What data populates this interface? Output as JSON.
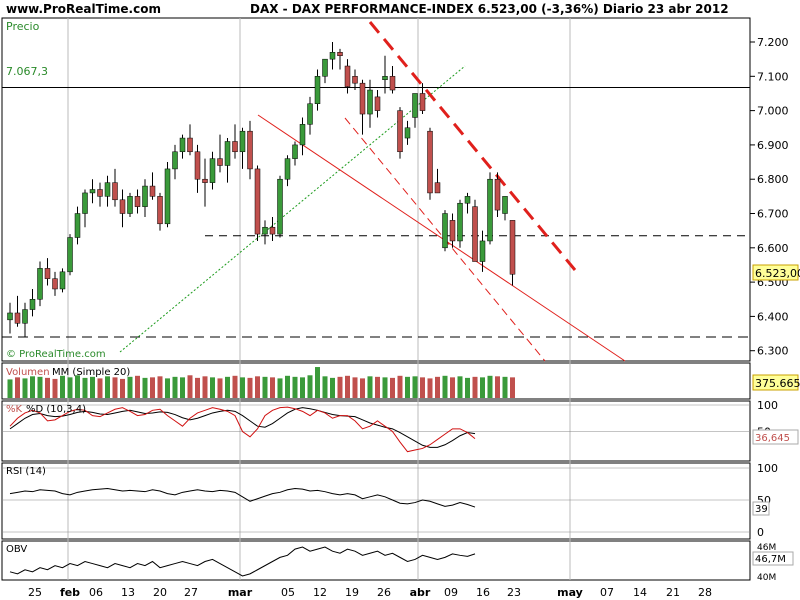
{
  "header": {
    "site": "www.ProRealTime.com",
    "title": "DAX - DAX PERFORMANCE-INDEX    6.523,00 (-3,36%)    Diario  23 abr 2012"
  },
  "panels": {
    "price_label": "Precio",
    "watermark": "© ProRealTime.com",
    "hline_label": "7.067,3",
    "last_price_badge": "6.523,00",
    "volume_label": "Volumen",
    "volume_ma_label": "MM (Simple 20)",
    "volume_badge": "375.665",
    "stoch_label_k": "%K",
    "stoch_label_d": "%D (10,3,4)",
    "stoch_badge": "36,645",
    "rsi_label": "RSI (14)",
    "rsi_badge": "39",
    "obv_label": "OBV",
    "obv_badge": "46,7M"
  },
  "colors": {
    "up": "#3a9a3a",
    "down": "#c0504d",
    "trendline": "#e0201c",
    "support_dotted": "#1a9a1a",
    "badge_bg": "#ffff99",
    "volume_bar": "#c0504d",
    "volume_bar_up": "#3a9a3a"
  },
  "chart_data": [
    {
      "type": "candlestick",
      "title": "DAX - DAX PERFORMANCE-INDEX",
      "ylabel": "Precio",
      "ylim": [
        6270,
        7270
      ],
      "yticks": [
        "6.300",
        "6.400",
        "6.500",
        "6.600",
        "6.700",
        "6.800",
        "6.900",
        "7.000",
        "7.100",
        "7.200"
      ],
      "ytick_values": [
        6300,
        6400,
        6500,
        6600,
        6700,
        6800,
        6900,
        7000,
        7100,
        7200
      ],
      "x_labels": [
        "25",
        "feb",
        "06",
        "13",
        "20",
        "27",
        "mar",
        "05",
        "12",
        "19",
        "26",
        "abr",
        "09",
        "16",
        "23",
        "may",
        "07",
        "14",
        "21",
        "28"
      ],
      "horizontal_levels": [
        7067.3,
        6635,
        6340
      ],
      "candles": [
        {
          "o": 6390,
          "h": 6440,
          "l": 6350,
          "c": 6410
        },
        {
          "o": 6410,
          "h": 6460,
          "l": 6370,
          "c": 6380
        },
        {
          "o": 6380,
          "h": 6440,
          "l": 6340,
          "c": 6420
        },
        {
          "o": 6420,
          "h": 6480,
          "l": 6400,
          "c": 6450
        },
        {
          "o": 6450,
          "h": 6560,
          "l": 6430,
          "c": 6540
        },
        {
          "o": 6540,
          "h": 6570,
          "l": 6490,
          "c": 6510
        },
        {
          "o": 6510,
          "h": 6530,
          "l": 6460,
          "c": 6480
        },
        {
          "o": 6480,
          "h": 6540,
          "l": 6470,
          "c": 6530
        },
        {
          "o": 6530,
          "h": 6640,
          "l": 6520,
          "c": 6630
        },
        {
          "o": 6630,
          "h": 6720,
          "l": 6610,
          "c": 6700
        },
        {
          "o": 6700,
          "h": 6770,
          "l": 6660,
          "c": 6760
        },
        {
          "o": 6760,
          "h": 6800,
          "l": 6730,
          "c": 6770
        },
        {
          "o": 6770,
          "h": 6790,
          "l": 6720,
          "c": 6750
        },
        {
          "o": 6750,
          "h": 6810,
          "l": 6720,
          "c": 6790
        },
        {
          "o": 6790,
          "h": 6830,
          "l": 6720,
          "c": 6740
        },
        {
          "o": 6740,
          "h": 6770,
          "l": 6660,
          "c": 6700
        },
        {
          "o": 6700,
          "h": 6760,
          "l": 6690,
          "c": 6750
        },
        {
          "o": 6750,
          "h": 6770,
          "l": 6700,
          "c": 6720
        },
        {
          "o": 6720,
          "h": 6800,
          "l": 6690,
          "c": 6780
        },
        {
          "o": 6780,
          "h": 6820,
          "l": 6740,
          "c": 6750
        },
        {
          "o": 6750,
          "h": 6760,
          "l": 6650,
          "c": 6670
        },
        {
          "o": 6670,
          "h": 6850,
          "l": 6660,
          "c": 6830
        },
        {
          "o": 6830,
          "h": 6900,
          "l": 6800,
          "c": 6880
        },
        {
          "o": 6880,
          "h": 6930,
          "l": 6860,
          "c": 6920
        },
        {
          "o": 6920,
          "h": 6960,
          "l": 6870,
          "c": 6880
        },
        {
          "o": 6880,
          "h": 6900,
          "l": 6760,
          "c": 6800
        },
        {
          "o": 6800,
          "h": 6860,
          "l": 6720,
          "c": 6790
        },
        {
          "o": 6790,
          "h": 6880,
          "l": 6770,
          "c": 6860
        },
        {
          "o": 6860,
          "h": 6930,
          "l": 6820,
          "c": 6840
        },
        {
          "o": 6840,
          "h": 6920,
          "l": 6790,
          "c": 6910
        },
        {
          "o": 6910,
          "h": 6960,
          "l": 6860,
          "c": 6880
        },
        {
          "o": 6880,
          "h": 6950,
          "l": 6830,
          "c": 6940
        },
        {
          "o": 6940,
          "h": 6970,
          "l": 6800,
          "c": 6830
        },
        {
          "o": 6830,
          "h": 6840,
          "l": 6620,
          "c": 6640
        },
        {
          "o": 6640,
          "h": 6680,
          "l": 6610,
          "c": 6660
        },
        {
          "o": 6660,
          "h": 6690,
          "l": 6620,
          "c": 6640
        },
        {
          "o": 6640,
          "h": 6810,
          "l": 6630,
          "c": 6800
        },
        {
          "o": 6800,
          "h": 6870,
          "l": 6780,
          "c": 6860
        },
        {
          "o": 6860,
          "h": 6910,
          "l": 6840,
          "c": 6900
        },
        {
          "o": 6900,
          "h": 6980,
          "l": 6870,
          "c": 6960
        },
        {
          "o": 6960,
          "h": 7040,
          "l": 6930,
          "c": 7020
        },
        {
          "o": 7020,
          "h": 7120,
          "l": 7000,
          "c": 7100
        },
        {
          "o": 7100,
          "h": 7150,
          "l": 7080,
          "c": 7150
        },
        {
          "o": 7150,
          "h": 7200,
          "l": 7120,
          "c": 7170
        },
        {
          "o": 7170,
          "h": 7180,
          "l": 7120,
          "c": 7160
        },
        {
          "o": 7130,
          "h": 7150,
          "l": 7050,
          "c": 7070
        },
        {
          "o": 7100,
          "h": 7120,
          "l": 7060,
          "c": 7080
        },
        {
          "o": 7080,
          "h": 7090,
          "l": 6930,
          "c": 6990
        },
        {
          "o": 6990,
          "h": 7090,
          "l": 6950,
          "c": 7060
        },
        {
          "o": 7040,
          "h": 7060,
          "l": 6980,
          "c": 7000
        },
        {
          "o": 7090,
          "h": 7160,
          "l": 7050,
          "c": 7100
        },
        {
          "o": 7100,
          "h": 7130,
          "l": 7050,
          "c": 7060
        },
        {
          "o": 7000,
          "h": 7010,
          "l": 6860,
          "c": 6880
        },
        {
          "o": 6920,
          "h": 6970,
          "l": 6900,
          "c": 6950
        },
        {
          "o": 6980,
          "h": 7050,
          "l": 6950,
          "c": 7050
        },
        {
          "o": 7050,
          "h": 7080,
          "l": 6990,
          "c": 7000
        },
        {
          "o": 6940,
          "h": 6950,
          "l": 6740,
          "c": 6760
        },
        {
          "o": 6790,
          "h": 6830,
          "l": 6760,
          "c": 6760
        },
        {
          "o": 6600,
          "h": 6710,
          "l": 6590,
          "c": 6700
        },
        {
          "o": 6680,
          "h": 6700,
          "l": 6600,
          "c": 6620
        },
        {
          "o": 6620,
          "h": 6740,
          "l": 6600,
          "c": 6730
        },
        {
          "o": 6730,
          "h": 6760,
          "l": 6700,
          "c": 6750
        },
        {
          "o": 6720,
          "h": 6740,
          "l": 6560,
          "c": 6560
        },
        {
          "o": 6560,
          "h": 6650,
          "l": 6530,
          "c": 6620
        },
        {
          "o": 6620,
          "h": 6820,
          "l": 6610,
          "c": 6800
        },
        {
          "o": 6800,
          "h": 6820,
          "l": 6690,
          "c": 6710
        },
        {
          "o": 6700,
          "h": 6750,
          "l": 6680,
          "c": 6750
        },
        {
          "o": 6680,
          "h": 6680,
          "l": 6490,
          "c": 6523
        }
      ]
    },
    {
      "type": "bar",
      "ylabel": "Volumen",
      "series": [
        {
          "name": "Volumen",
          "values": [
            36,
            40,
            38,
            42,
            41,
            39,
            37,
            43,
            40,
            44,
            39,
            41,
            38,
            42,
            40,
            37,
            41,
            43,
            39,
            40,
            42,
            38,
            41,
            40,
            44,
            39,
            42,
            40,
            38,
            41,
            43,
            40,
            39,
            42,
            41,
            40,
            38,
            43,
            41,
            40,
            44,
            60,
            42,
            39,
            41,
            43,
            40,
            38,
            42,
            41,
            40,
            39,
            43,
            41,
            42,
            40,
            38,
            41,
            43,
            40,
            42,
            39,
            41,
            40,
            43,
            42,
            41,
            40
          ]
        },
        {
          "name": "MM (Simple 20)",
          "values": []
        }
      ]
    },
    {
      "type": "line",
      "ylabel": "%K %D (10,3,4)",
      "ylim": [
        0,
        100
      ],
      "yticks": [
        "100",
        "50"
      ],
      "series": [
        {
          "name": "%K",
          "values": [
            60,
            75,
            85,
            90,
            85,
            70,
            72,
            80,
            88,
            92,
            90,
            80,
            78,
            85,
            92,
            95,
            88,
            80,
            82,
            90,
            92,
            80,
            70,
            60,
            75,
            85,
            90,
            95,
            92,
            88,
            80,
            50,
            40,
            55,
            80,
            90,
            95,
            96,
            93,
            88,
            80,
            90,
            85,
            75,
            80,
            80,
            70,
            55,
            60,
            70,
            60,
            50,
            30,
            12,
            15,
            18,
            25,
            35,
            45,
            55,
            55,
            48,
            36.645
          ]
        },
        {
          "name": "%D",
          "values": [
            55,
            65,
            75,
            82,
            84,
            80,
            78,
            79,
            82,
            86,
            88,
            86,
            83,
            82,
            85,
            88,
            90,
            87,
            84,
            85,
            87,
            86,
            82,
            76,
            72,
            75,
            80,
            85,
            88,
            90,
            88,
            80,
            70,
            60,
            58,
            65,
            75,
            85,
            92,
            95,
            93,
            90,
            86,
            82,
            80,
            79,
            78,
            72,
            66,
            62,
            58,
            55,
            48,
            40,
            32,
            24,
            20,
            20,
            25,
            33,
            42,
            48,
            46
          ]
        }
      ]
    },
    {
      "type": "line",
      "ylabel": "RSI (14)",
      "ylim": [
        0,
        100
      ],
      "yticks": [
        "100",
        "50",
        "0"
      ],
      "series": [
        {
          "name": "RSI (14)",
          "values": [
            60,
            62,
            64,
            63,
            66,
            65,
            64,
            60,
            58,
            62,
            64,
            66,
            67,
            68,
            66,
            64,
            65,
            64,
            63,
            66,
            64,
            60,
            58,
            62,
            64,
            66,
            64,
            63,
            65,
            64,
            62,
            55,
            48,
            52,
            56,
            60,
            62,
            66,
            68,
            67,
            64,
            65,
            63,
            60,
            58,
            60,
            58,
            52,
            55,
            58,
            55,
            50,
            45,
            44,
            46,
            50,
            48,
            44,
            40,
            42,
            46,
            43,
            39
          ]
        }
      ]
    },
    {
      "type": "line",
      "ylabel": "OBV",
      "yticks": [
        "46M",
        "40M"
      ],
      "series": [
        {
          "name": "OBV",
          "values": [
            38,
            37,
            39,
            38,
            40,
            39,
            41,
            40,
            42,
            41,
            43,
            42,
            41,
            40,
            42,
            41,
            40,
            42,
            41,
            43,
            40,
            41,
            42,
            43,
            42,
            41,
            43,
            44,
            42,
            40,
            38,
            36,
            37,
            39,
            41,
            43,
            45,
            46,
            49,
            50,
            48,
            49,
            50,
            48,
            47,
            49,
            48,
            46,
            47,
            48,
            46,
            47,
            45,
            43,
            44,
            46,
            45,
            44,
            45,
            46.7,
            46,
            45.5,
            46.7
          ]
        }
      ]
    }
  ]
}
